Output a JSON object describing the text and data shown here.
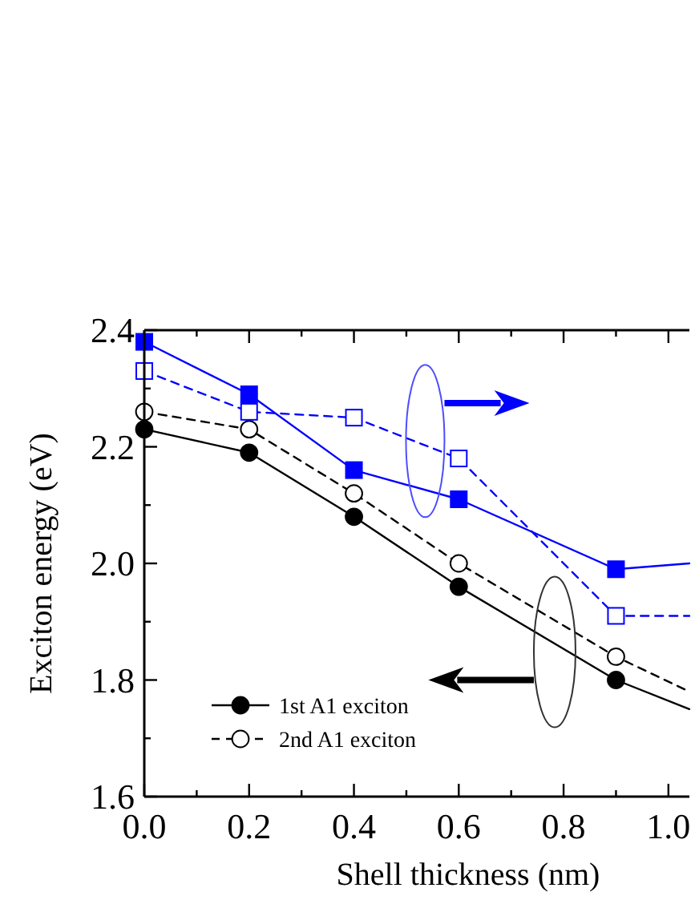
{
  "chart_data": {
    "type": "line",
    "xlabel": "Shell thickness (nm)",
    "ylabel": "Exciton energy (eV)",
    "x": [
      0,
      0.2,
      0.4,
      0.6,
      0.9,
      1.04
    ],
    "series": [
      {
        "name": "1st A1 exciton",
        "color": "#000000",
        "marker": "circle",
        "line_style": "solid",
        "values": [
          2.23,
          2.19,
          2.08,
          1.96,
          1.8,
          1.75
        ]
      },
      {
        "name": "2nd A1 exciton",
        "color": "#000000",
        "marker": "circle",
        "line_style": "dashed",
        "values": [
          2.26,
          2.23,
          2.12,
          2.0,
          1.84,
          1.78
        ]
      },
      {
        "color": "#0000ff",
        "marker": "square",
        "line_style": "solid",
        "values": [
          2.38,
          2.29,
          2.16,
          2.11,
          1.99,
          2.0
        ]
      },
      {
        "color": "#0000ff",
        "marker": "square",
        "line_style": "dashed",
        "values": [
          2.33,
          2.26,
          2.25,
          2.18,
          1.91,
          1.91
        ]
      }
    ],
    "xlim": [
      0,
      1.04
    ],
    "ylim": [
      1.6,
      2.4
    ],
    "xticks": [
      {
        "value": 0,
        "label": "0.0"
      },
      {
        "value": 0.1,
        "label": null
      },
      0.2,
      {
        "value": 0.3,
        "label": null
      },
      0.4,
      {
        "value": 0.5,
        "label": null
      },
      0.6,
      {
        "value": 0.7,
        "label": null
      },
      0.8,
      {
        "value": 0.9,
        "label": null
      },
      {
        "value": 1,
        "label": "1.0"
      }
    ],
    "yticks": [
      1.6,
      {
        "value": 1.7,
        "label": null
      },
      1.8,
      {
        "value": 1.9,
        "label": null
      },
      {
        "value": 2,
        "label": "2.0"
      },
      {
        "value": 2.1,
        "label": null
      },
      2.2,
      {
        "value": 2.3,
        "label": null
      },
      2.4
    ],
    "legend": "bottom left"
  }
}
